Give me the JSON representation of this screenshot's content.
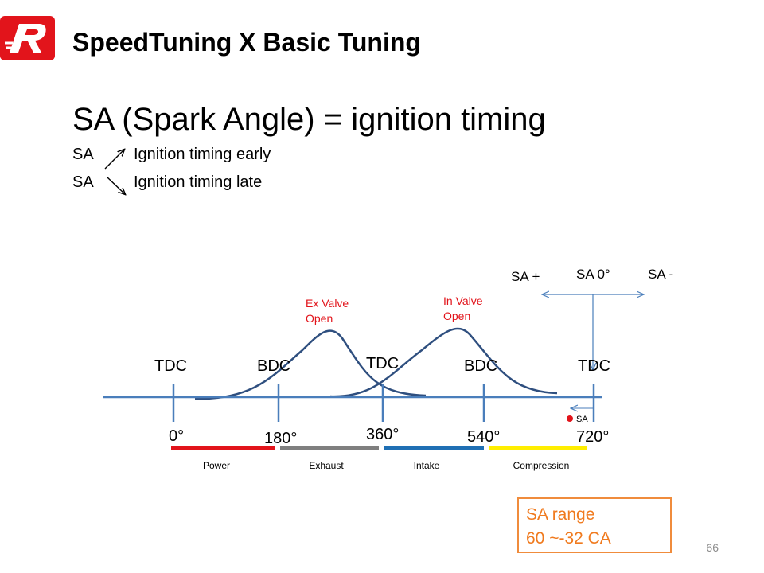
{
  "header": {
    "title": "SpeedTuning X Basic Tuning"
  },
  "heading": "SA (Spark Angle) = ignition timing",
  "bullets": [
    {
      "label": "SA",
      "text": "Ignition timing early"
    },
    {
      "label": "SA",
      "text": "Ignition timing late"
    }
  ],
  "diagram": {
    "sa_directions": [
      "SA +",
      "SA 0°",
      "SA -"
    ],
    "ex_valve": [
      "Ex Valve",
      "Open"
    ],
    "in_valve": [
      "In Valve",
      "Open"
    ],
    "positions": [
      "TDC",
      "BDC",
      "TDC",
      "BDC",
      "TDC"
    ],
    "degrees": [
      "0°",
      "180°",
      "360°",
      "540°",
      "720°"
    ],
    "strokes": [
      "Power",
      "Exhaust",
      "Intake",
      "Compression"
    ],
    "sa_marker": "SA"
  },
  "note_box": [
    "SA range",
    "60 ~-32 CA"
  ],
  "page_number": "66"
}
